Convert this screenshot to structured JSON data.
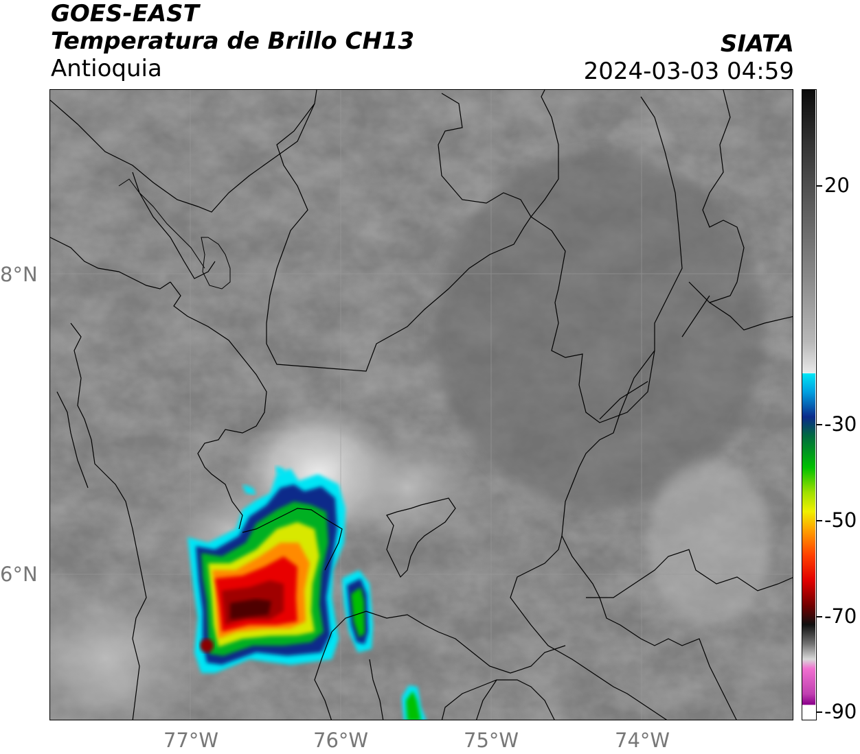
{
  "header": {
    "title_line1": "GOES-EAST",
    "title_line2": "Temperatura de Brillo CH13",
    "subtitle": "Antioquia",
    "brand": "SIATA",
    "timestamp": "2024-03-03 04:59"
  },
  "map": {
    "lat_labels": [
      "8°N",
      "6°N"
    ],
    "lon_labels": [
      "77°W",
      "76°W",
      "75°W",
      "74°W"
    ],
    "features": [
      "satellite-brightness-temperature",
      "department-boundaries",
      "gridlines",
      "convective-storm-cloud"
    ]
  },
  "colorbar": {
    "tick_labels": [
      "20",
      "-30",
      "-50",
      "-70",
      "-90"
    ],
    "range": [
      -90,
      40
    ],
    "colors": {
      "warm_gray": "#7a7a7a",
      "cyan": "#00e5f5",
      "blue": "#0a2a8a",
      "green": "#00c000",
      "yellow": "#f0f000",
      "orange": "#ff8800",
      "red": "#e00000",
      "dark_red": "#600000",
      "magenta": "#e040c0",
      "purple": "#8a008a"
    }
  }
}
